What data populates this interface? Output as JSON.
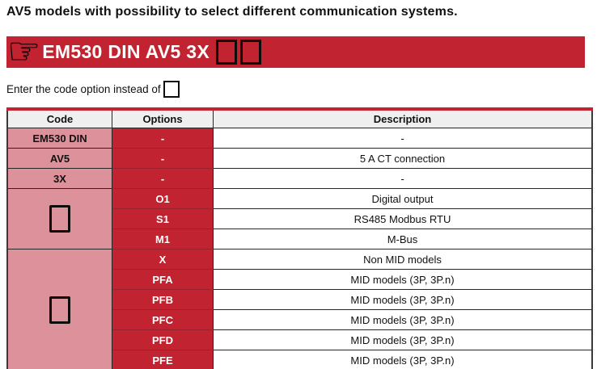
{
  "page": {
    "title": "AV5 models with possibility to select different communication systems."
  },
  "banner": {
    "icon": "pointing-hand-icon",
    "icon_glyph": "☞",
    "code_text": "EM530 DIN AV5 3X",
    "placeholder_box_count": 2,
    "bg_color": "#C22330",
    "text_color": "#FFFFFF"
  },
  "instruction": {
    "text": "Enter the code option instead of"
  },
  "colors": {
    "banner_red": "#C22330",
    "option_cell_red": "#C22330",
    "code_cell_pink": "#DD929B",
    "header_gray": "#EFEFEF",
    "table_top_border": "#C22330",
    "table_bottom_border": "#8A2A32",
    "cell_border": "#262626",
    "option_divider_red": "#9A2130"
  },
  "table": {
    "headers": [
      "Code",
      "Options",
      "Description"
    ],
    "groups": [
      {
        "code": "EM530 DIN",
        "code_type": "text",
        "rows": [
          {
            "option": "-",
            "description": "-"
          }
        ]
      },
      {
        "code": "AV5",
        "code_type": "text",
        "rows": [
          {
            "option": "-",
            "description": "5 A CT connection"
          }
        ]
      },
      {
        "code": "3X",
        "code_type": "text",
        "rows": [
          {
            "option": "-",
            "description": "-"
          }
        ]
      },
      {
        "code": "",
        "code_type": "box",
        "rows": [
          {
            "option": "O1",
            "description": "Digital output"
          },
          {
            "option": "S1",
            "description": "RS485 Modbus RTU"
          },
          {
            "option": "M1",
            "description": "M-Bus"
          }
        ]
      },
      {
        "code": "",
        "code_type": "box",
        "rows": [
          {
            "option": "X",
            "description": "Non MID models"
          },
          {
            "option": "PFA",
            "description": "MID models (3P, 3P.n)"
          },
          {
            "option": "PFB",
            "description": "MID models (3P, 3P.n)"
          },
          {
            "option": "PFC",
            "description": "MID models (3P, 3P.n)"
          },
          {
            "option": "PFD",
            "description": "MID models (3P, 3P.n)"
          },
          {
            "option": "PFE",
            "description": "MID models (3P, 3P.n)"
          }
        ]
      }
    ]
  }
}
